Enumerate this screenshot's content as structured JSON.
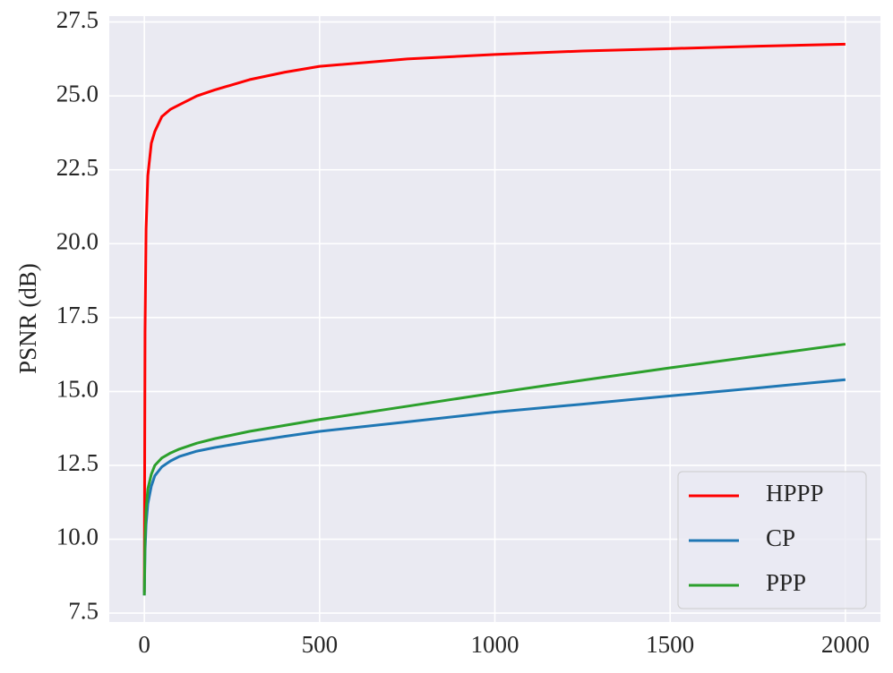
{
  "chart_data": {
    "type": "line",
    "ylabel": "PSNR (dB)",
    "x": [
      0,
      2,
      5,
      10,
      20,
      30,
      50,
      75,
      100,
      150,
      200,
      300,
      400,
      500,
      750,
      1000,
      1250,
      1500,
      1750,
      2000
    ],
    "series": [
      {
        "name": "HPPP",
        "color": "#ff0000",
        "values": [
          8.2,
          17.0,
          20.5,
          22.3,
          23.4,
          23.8,
          24.3,
          24.55,
          24.7,
          25.0,
          25.2,
          25.55,
          25.8,
          26.0,
          26.25,
          26.4,
          26.52,
          26.6,
          26.68,
          26.75
        ]
      },
      {
        "name": "CP",
        "color": "#1f77b4",
        "values": [
          8.1,
          9.6,
          10.5,
          11.2,
          11.8,
          12.15,
          12.45,
          12.65,
          12.8,
          12.98,
          13.1,
          13.3,
          13.48,
          13.65,
          13.97,
          14.3,
          14.57,
          14.85,
          15.12,
          15.4
        ]
      },
      {
        "name": "PPP",
        "color": "#2ca02c",
        "values": [
          8.1,
          10.0,
          11.0,
          11.7,
          12.2,
          12.5,
          12.75,
          12.92,
          13.05,
          13.25,
          13.4,
          13.65,
          13.85,
          14.05,
          14.5,
          14.95,
          15.38,
          15.8,
          16.2,
          16.6
        ]
      }
    ],
    "xlim": [
      -100,
      2100
    ],
    "ylim": [
      7.2,
      27.7
    ],
    "xticks": [
      0,
      500,
      1000,
      1500,
      2000
    ],
    "yticks": [
      7.5,
      {
        "value": 10,
        "label": "10.0"
      },
      12.5,
      {
        "value": 15,
        "label": "15.0"
      },
      17.5,
      {
        "value": 20,
        "label": "20.0"
      },
      22.5,
      {
        "value": 25,
        "label": "25.0"
      },
      27.5
    ],
    "grid": true,
    "legend": "lower right"
  }
}
